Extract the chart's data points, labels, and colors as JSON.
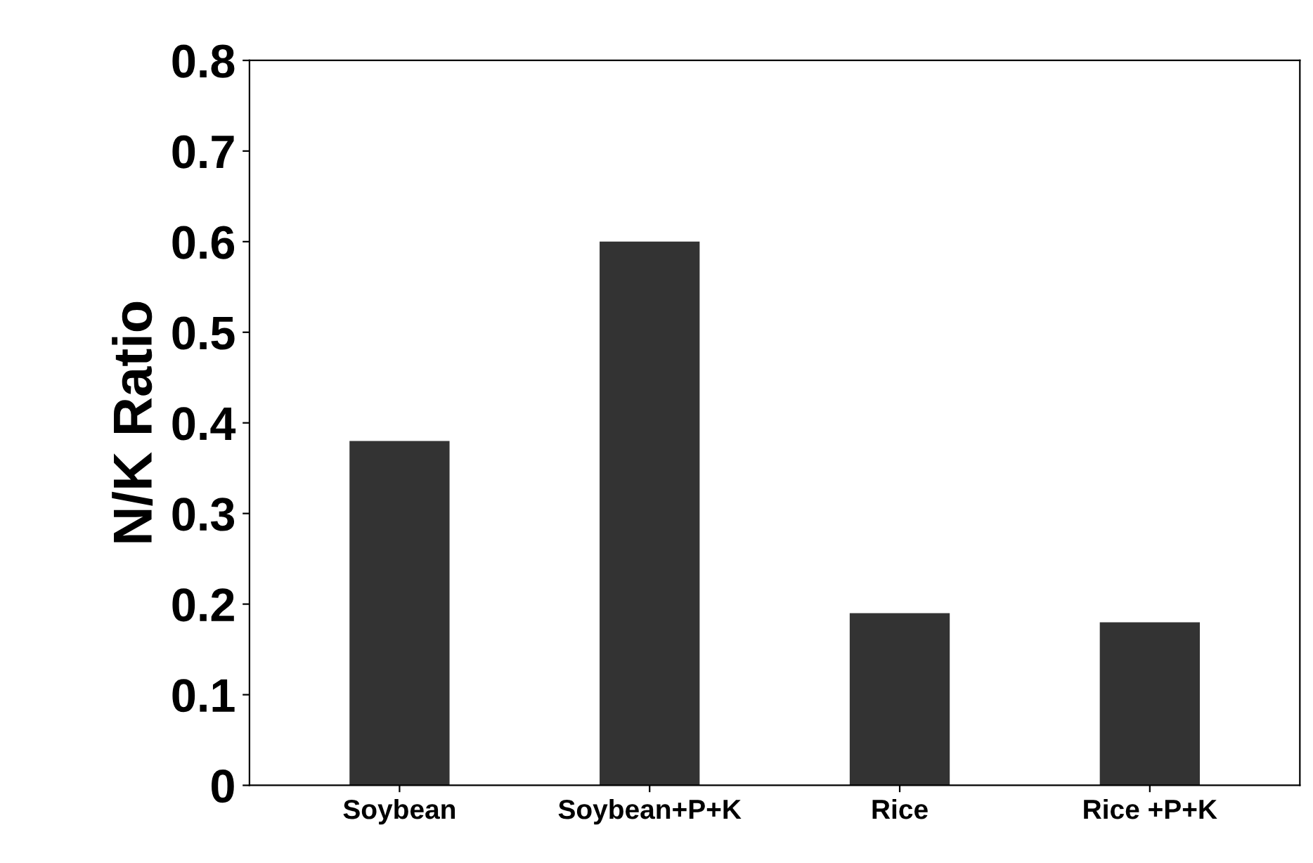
{
  "chart_data": {
    "type": "bar",
    "ylabel": "N/K Ratio",
    "categories": [
      "Soybean",
      "Soybean+P+K",
      "Rice",
      "Rice +P+K"
    ],
    "values": [
      0.38,
      0.6,
      0.19,
      0.18
    ],
    "color": "#333333",
    "ylim": [
      0,
      0.8
    ],
    "yticks": [
      0,
      {
        "value": 0.1,
        "label": "0.1"
      },
      {
        "value": 0.2,
        "label": "0.2"
      },
      {
        "value": 0.3,
        "label": "0.3"
      },
      {
        "value": 0.4,
        "label": "0.4"
      },
      {
        "value": 0.5,
        "label": "0.5"
      },
      {
        "value": 0.6,
        "label": "0.6"
      },
      {
        "value": 0.7,
        "label": "0.7"
      },
      {
        "value": 0.8,
        "label": "0.8"
      }
    ],
    "grid": false
  }
}
